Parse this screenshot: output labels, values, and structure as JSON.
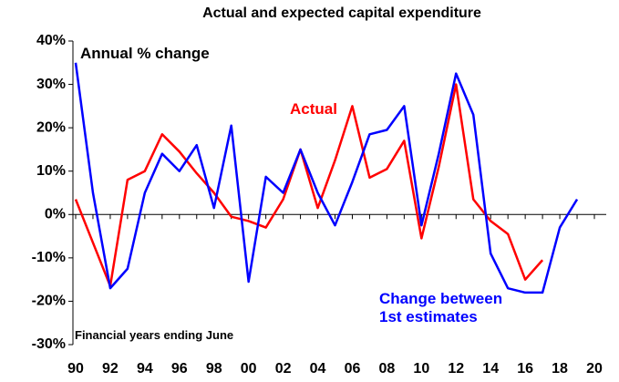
{
  "chart_data": {
    "type": "line",
    "title": "Actual and expected capital expenditure",
    "subtitle": "Annual % change",
    "note": "Financial years ending June",
    "categories": [
      "90",
      null,
      "92",
      null,
      "94",
      null,
      "96",
      null,
      "98",
      null,
      "00",
      null,
      "02",
      null,
      "04",
      null,
      "06",
      null,
      "08",
      null,
      "10",
      null,
      "12",
      null,
      "14",
      null,
      "16",
      null,
      "18",
      null,
      "20"
    ],
    "series": [
      {
        "name": "Actual",
        "color": "#ff0000",
        "values": [
          3.5,
          -6.5,
          -16.5,
          8,
          10,
          18.5,
          14.5,
          9.5,
          5,
          -0.5,
          -1.5,
          -3,
          3.5,
          15,
          1.5,
          12.5,
          25,
          8.5,
          10.5,
          17,
          -5.5,
          11,
          30,
          3.5,
          -1.5,
          -4.5,
          -15,
          -10.5,
          null,
          null,
          null
        ]
      },
      {
        "name": "Change between 1st estimates",
        "color": "#0000ff",
        "values": [
          35,
          5,
          -17,
          -12.5,
          5,
          14,
          10,
          16,
          1.5,
          20.5,
          -15.5,
          8.7,
          5,
          15,
          5,
          -2.5,
          7.5,
          18.5,
          19.5,
          25,
          -2.5,
          14,
          32.5,
          23,
          -9,
          -17,
          -18,
          -18,
          -3,
          3.5,
          null
        ]
      }
    ],
    "ylim": [
      -30,
      40
    ],
    "yticks": [
      {
        "value": -30,
        "label": "-30%"
      },
      {
        "value": -20,
        "label": "-20%"
      },
      {
        "value": -10,
        "label": "-10%"
      },
      {
        "value": 0,
        "label": "0%"
      },
      {
        "value": 10,
        "label": "10%"
      },
      {
        "value": 20,
        "label": "20%"
      },
      {
        "value": 30,
        "label": "30%"
      },
      {
        "value": 40,
        "label": "40%"
      }
    ],
    "grid": false
  }
}
